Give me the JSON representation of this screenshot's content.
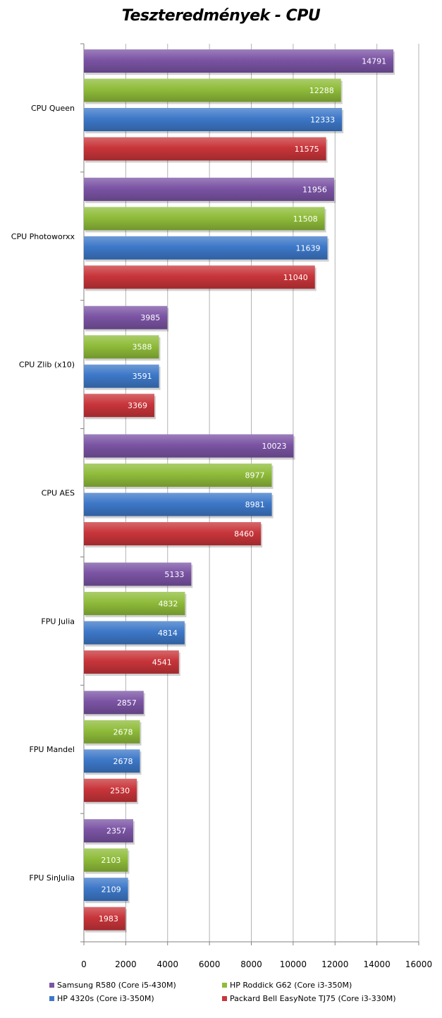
{
  "chart_data": {
    "type": "bar",
    "orientation": "horizontal",
    "title": "Teszteredmények - CPU",
    "categories": [
      "CPU Queen",
      "CPU Photoworxx",
      "CPU Zlib (x10)",
      "CPU AES",
      "FPU Julia",
      "FPU Mandel",
      "FPU SinJulia"
    ],
    "series": [
      {
        "name": "Samsung R580 (Core i5-430M)",
        "color": "#7b54a4",
        "values": [
          14791,
          11956,
          3985,
          10023,
          5133,
          2857,
          2357
        ]
      },
      {
        "name": "HP Roddick G62 (Core i3-350M)",
        "color": "#8fbc3a",
        "values": [
          12288,
          11508,
          3588,
          8977,
          4832,
          2678,
          2103
        ]
      },
      {
        "name": "HP 4320s (Core i3-350M)",
        "color": "#3d78c8",
        "values": [
          12333,
          11639,
          3591,
          8981,
          4814,
          2678,
          2109
        ]
      },
      {
        "name": "Packard Bell EasyNote  TJ75 (Core i3-330M)",
        "color": "#c8353a",
        "values": [
          11575,
          11040,
          3369,
          8460,
          4541,
          2530,
          1983
        ]
      }
    ],
    "xlim": [
      0,
      16000
    ],
    "xticks": [
      0,
      2000,
      4000,
      6000,
      8000,
      10000,
      12000,
      14000,
      16000
    ],
    "grid": true,
    "legend_position": "bottom"
  }
}
